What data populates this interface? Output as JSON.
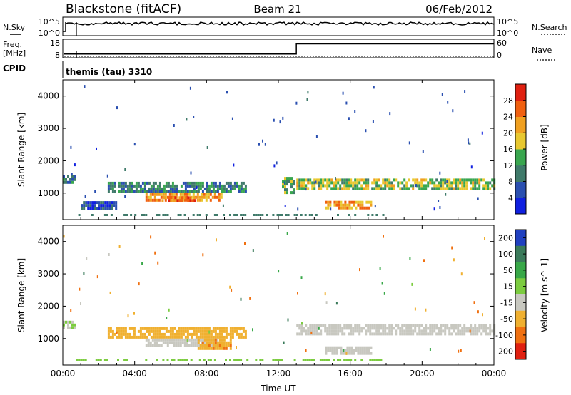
{
  "header": {
    "title": "Blackstone (fitACF)",
    "beam": "Beam 21",
    "date": "06/Feb/2012"
  },
  "control": {
    "nsky_label": "N.Sky",
    "nsky_top": "10^5",
    "nsky_bottom": "10^0",
    "nsearch_label": "N.Search",
    "nsearch_top": "10^5",
    "nsearch_bottom": "10^0",
    "freq_label_1": "Freq.",
    "freq_label_2": "[MHz]",
    "freq_top": "18",
    "freq_bottom": "8",
    "nave_label": "Nave",
    "nave_top": "60",
    "nave_bottom": "0",
    "cpid_label": "CPID",
    "cpid_value": "themis (tau) 3310"
  },
  "chart_data": [
    {
      "type": "heatmap",
      "name": "power",
      "ylabel": "Slant Range [km]",
      "xlabel": "Time UT",
      "x_ticks": [
        "00:00",
        "04:00",
        "08:00",
        "12:00",
        "16:00",
        "20:00",
        "00:00"
      ],
      "xlim_hours": [
        0,
        24
      ],
      "ylim_km": [
        180,
        4500
      ],
      "y_ticks": [
        1000,
        2000,
        3000,
        4000
      ],
      "colorbar": {
        "label": "Power [dB]",
        "ticks": [
          "4",
          "8",
          "12",
          "16",
          "20",
          "24",
          "28"
        ],
        "colors": [
          "#1020e0",
          "#2a4fb0",
          "#3f7a6a",
          "#39a64f",
          "#e8c830",
          "#f0a020",
          "#f06010",
          "#e02010"
        ]
      },
      "echo_regions": [
        {
          "t_start": 0.0,
          "t_end": 0.6,
          "range_low": 1350,
          "range_high": 1550,
          "power_db": 8
        },
        {
          "t_start": 1.0,
          "t_end": 3.0,
          "range_low": 550,
          "range_high": 750,
          "power_db": 6
        },
        {
          "t_start": 2.5,
          "t_end": 10.2,
          "range_low": 1000,
          "range_high": 1350,
          "power_db": 10
        },
        {
          "t_start": 4.6,
          "t_end": 8.8,
          "range_low": 750,
          "range_high": 1000,
          "power_db": 22
        },
        {
          "t_start": 5.5,
          "t_end": 7.5,
          "range_low": 780,
          "range_high": 900,
          "power_db": 26
        },
        {
          "t_start": 12.2,
          "t_end": 12.8,
          "range_low": 1000,
          "range_high": 1500,
          "power_db": 14
        },
        {
          "t_start": 13.0,
          "t_end": 24.0,
          "range_low": 1150,
          "range_high": 1450,
          "power_db": 16
        },
        {
          "t_start": 14.6,
          "t_end": 17.2,
          "range_low": 560,
          "range_high": 760,
          "power_db": 22
        }
      ]
    },
    {
      "type": "heatmap",
      "name": "velocity",
      "ylabel": "Slant Range [km]",
      "xlabel": "Time UT",
      "x_ticks": [
        "00:00",
        "04:00",
        "08:00",
        "12:00",
        "16:00",
        "20:00",
        "00:00"
      ],
      "xlim_hours": [
        0,
        24
      ],
      "ylim_km": [
        180,
        4500
      ],
      "y_ticks": [
        1000,
        2000,
        3000,
        4000
      ],
      "colorbar": {
        "label": "Velocity [m s^-1]",
        "ticks": [
          "200",
          "100",
          "50",
          "15",
          "-15",
          "-50",
          "-100",
          "-200"
        ],
        "colors": [
          "#2040c0",
          "#3a7a5a",
          "#38a848",
          "#7ccc40",
          "#c8c8c0",
          "#f0b030",
          "#f07010",
          "#e02010"
        ]
      },
      "echo_regions": [
        {
          "t_start": 0.0,
          "t_end": 0.6,
          "range_low": 1350,
          "range_high": 1550,
          "velocity_ms": 10
        },
        {
          "t_start": 2.5,
          "t_end": 10.2,
          "range_low": 1000,
          "range_high": 1350,
          "velocity_ms": -30
        },
        {
          "t_start": 4.6,
          "t_end": 8.8,
          "range_low": 750,
          "range_high": 1000,
          "velocity_ms": 0
        },
        {
          "t_start": 7.5,
          "t_end": 9.4,
          "range_low": 700,
          "range_high": 1000,
          "velocity_ms": -40
        },
        {
          "t_start": 13.0,
          "t_end": 24.0,
          "range_low": 1150,
          "range_high": 1450,
          "velocity_ms": 0
        },
        {
          "t_start": 14.6,
          "t_end": 17.2,
          "range_low": 560,
          "range_high": 760,
          "velocity_ms": 0
        }
      ]
    }
  ],
  "control_traces": {
    "freq_mhz_before": 10,
    "freq_mhz_after": 15.5,
    "freq_change_hour": 13.0,
    "nave_value": 0
  }
}
